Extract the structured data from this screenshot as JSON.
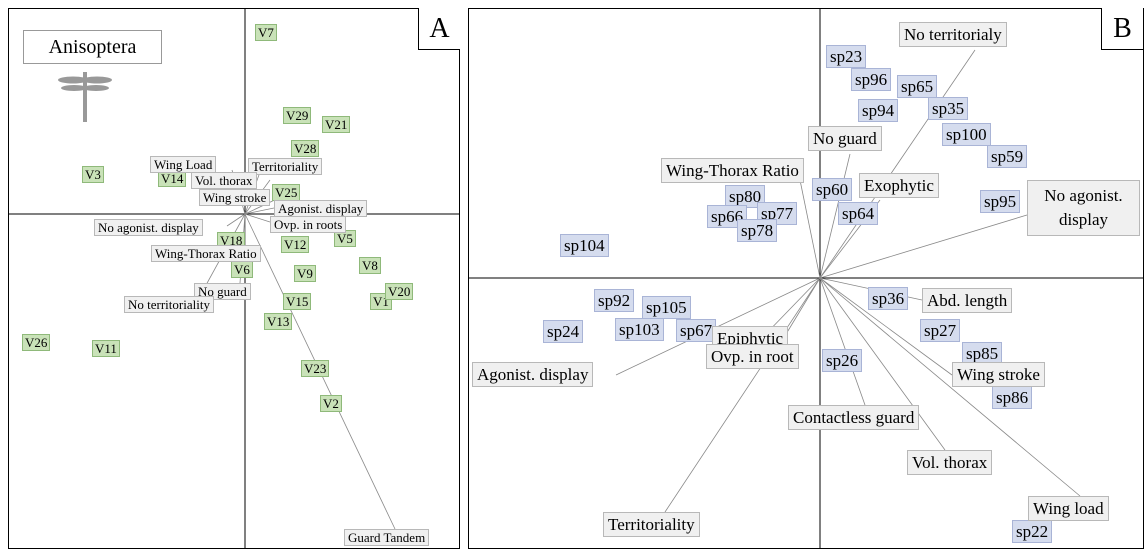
{
  "panels": [
    {
      "letter": "A",
      "title": "Anisoptera",
      "variables": [
        "V7",
        "V29",
        "V21",
        "V28",
        "V3",
        "V14",
        "V25",
        "V18",
        "V12",
        "V5",
        "V6",
        "V9",
        "V8",
        "V15",
        "V1",
        "V20",
        "V13",
        "V26",
        "V11",
        "V23",
        "V2"
      ],
      "traits": [
        "Wing Load",
        "Territoriality",
        "Vol. thorax",
        "Wing stroke",
        "Agonist. display",
        "No agonist. display",
        "Ovp. in roots",
        "Wing-Thorax Ratio",
        "No guard",
        "No territoriality",
        "Guard Tandem"
      ]
    },
    {
      "letter": "B",
      "variables": [
        "sp23",
        "sp96",
        "sp65",
        "sp94",
        "sp35",
        "sp100",
        "sp59",
        "sp95",
        "sp80",
        "sp60",
        "sp66",
        "sp77",
        "sp78",
        "sp64",
        "sp104",
        "sp36",
        "sp92",
        "sp105",
        "sp24",
        "sp103",
        "sp67",
        "sp27",
        "sp85",
        "sp26",
        "sp86",
        "sp22"
      ],
      "traits": [
        "No territorialy",
        "No guard",
        "Wing-Thorax Ratio",
        "Exophytic",
        "No agonist. display",
        "Abd. length",
        "Epiphytic",
        "Ovp. in root",
        "Agonist. display",
        "Wing stroke",
        "Contactless guard",
        "Vol. thorax",
        "Wing load",
        "Territoriality"
      ]
    }
  ]
}
